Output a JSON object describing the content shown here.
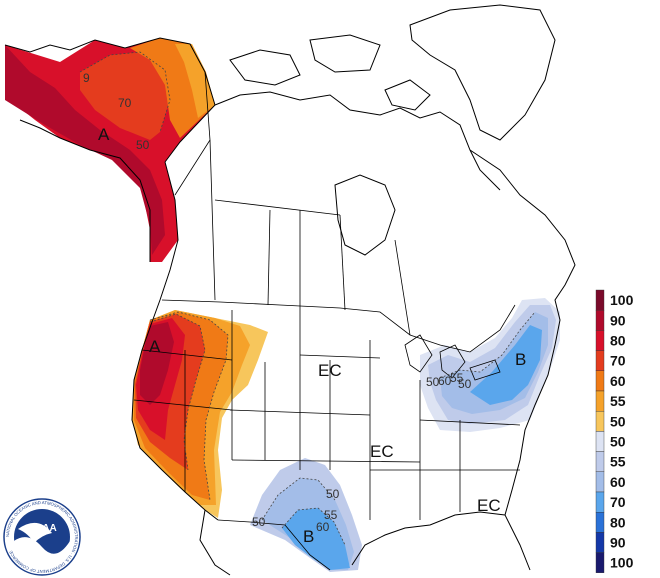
{
  "map": {
    "region_labels": [
      {
        "id": "alaska-above",
        "text": "A"
      },
      {
        "id": "west-above",
        "text": "A"
      },
      {
        "id": "northeast-below",
        "text": "B"
      },
      {
        "id": "texas-below",
        "text": "B"
      },
      {
        "id": "plains-ec",
        "text": "EC"
      },
      {
        "id": "midwest-ec",
        "text": "EC"
      },
      {
        "id": "southeast-ec",
        "text": "EC"
      }
    ],
    "contour_labels": [
      {
        "id": "ak-70",
        "text": "70"
      },
      {
        "id": "ak-50",
        "text": "50"
      },
      {
        "id": "ak-9",
        "text": "9"
      },
      {
        "id": "tx-50a",
        "text": "50"
      },
      {
        "id": "tx-50b",
        "text": "50"
      },
      {
        "id": "tx-55",
        "text": "55"
      },
      {
        "id": "tx-60",
        "text": "60"
      },
      {
        "id": "gl-50",
        "text": "50"
      },
      {
        "id": "gl-55",
        "text": "55"
      },
      {
        "id": "gl-60",
        "text": "60"
      },
      {
        "id": "gl-50b",
        "text": "50"
      }
    ]
  },
  "legend": {
    "above": [
      {
        "label": "100",
        "color": "#7a0a2a"
      },
      {
        "label": "90",
        "color": "#b00a2c"
      },
      {
        "label": "80",
        "color": "#d8102a"
      },
      {
        "label": "70",
        "color": "#e43c1e"
      },
      {
        "label": "60",
        "color": "#f07a16"
      },
      {
        "label": "55",
        "color": "#f5a22a"
      },
      {
        "label": "50",
        "color": "#f7c65c"
      }
    ],
    "below": [
      {
        "label": "50",
        "color": "#dde3f3"
      },
      {
        "label": "55",
        "color": "#bfcbea"
      },
      {
        "label": "60",
        "color": "#a3bde8"
      },
      {
        "label": "70",
        "color": "#5aa6ec"
      },
      {
        "label": "80",
        "color": "#2a72d8"
      },
      {
        "label": "90",
        "color": "#1438a8"
      },
      {
        "label": "100",
        "color": "#1a1a6e"
      }
    ]
  },
  "logo": {
    "text": "NOAA",
    "ring_text": "NATIONAL OCEANIC AND ATMOSPHERIC ADMINISTRATION · U.S. DEPARTMENT OF COMMERCE"
  }
}
